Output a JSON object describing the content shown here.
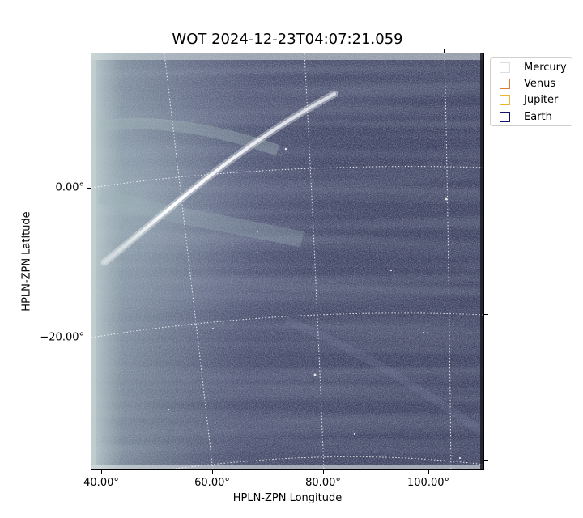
{
  "title": "WOT 2024-12-23T04:07:21.059",
  "xlabel": "HPLN-ZPN Longitude",
  "ylabel": "HPLN-ZPN Latitude",
  "x_ticks": [
    "40.00°",
    "60.00°",
    "80.00°",
    "100.00°"
  ],
  "y_ticks": [
    "0.00°",
    "−20.00°"
  ],
  "legend": [
    {
      "label": "Mercury",
      "color": "#dddddd"
    },
    {
      "label": "Venus",
      "color": "#e07b39"
    },
    {
      "label": "Jupiter",
      "color": "#e8b830"
    },
    {
      "label": "Earth",
      "color": "#14146e"
    }
  ]
}
